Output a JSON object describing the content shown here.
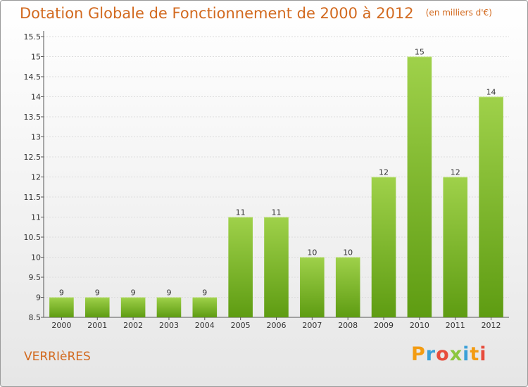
{
  "header": {
    "title": "Dotation Globale de Fonctionnement de 2000 à 2012",
    "unit": "(en milliers d'€)"
  },
  "footer": {
    "city": "VERRIèRES",
    "brand": "Proxiti",
    "brand_colors": [
      "#f39c12",
      "#3aa0d8",
      "#e74c3c",
      "#8cc63f",
      "#3aa0d8",
      "#f39c12",
      "#e74c3c"
    ]
  },
  "colors": {
    "bar_top": "#9fd14a",
    "bar_bottom": "#5e9c12",
    "axis": "#555555",
    "grid": "#dcdcdc",
    "accent": "#d2691e"
  },
  "chart_data": {
    "type": "bar",
    "title": "Dotation Globale de Fonctionnement de 2000 à 2012",
    "subtitle": "(en milliers d'€)",
    "categories": [
      "2000",
      "2001",
      "2002",
      "2003",
      "2004",
      "2005",
      "2006",
      "2007",
      "2008",
      "2009",
      "2010",
      "2011",
      "2012"
    ],
    "values": [
      9,
      9,
      9,
      9,
      9,
      11,
      11,
      10,
      10,
      12,
      15,
      12,
      14
    ],
    "xlabel": "",
    "ylabel": "",
    "ylim": [
      8.5,
      15.5
    ],
    "yticks": [
      "8.5",
      "9",
      "9.5",
      "10",
      "10.5",
      "11",
      "11.5",
      "12",
      "12.5",
      "13",
      "13.5",
      "14",
      "14.5",
      "15",
      "15.5"
    ],
    "grid": true,
    "data_labels": true
  }
}
